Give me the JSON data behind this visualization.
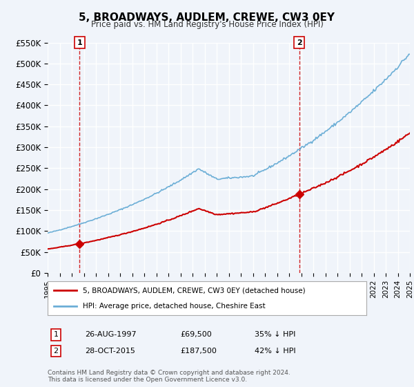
{
  "title": "5, BROADWAYS, AUDLEM, CREWE, CW3 0EY",
  "subtitle": "Price paid vs. HM Land Registry's House Price Index (HPI)",
  "xlim_years": [
    1995,
    2025
  ],
  "ylim": [
    0,
    550000
  ],
  "yticks": [
    0,
    50000,
    100000,
    150000,
    200000,
    250000,
    300000,
    350000,
    400000,
    450000,
    500000,
    550000
  ],
  "ytick_labels": [
    "£0",
    "£50K",
    "£100K",
    "£150K",
    "£200K",
    "£250K",
    "£300K",
    "£350K",
    "£400K",
    "£450K",
    "£500K",
    "£550K"
  ],
  "xticks": [
    1995,
    1996,
    1997,
    1998,
    1999,
    2000,
    2001,
    2002,
    2003,
    2004,
    2005,
    2006,
    2007,
    2008,
    2009,
    2010,
    2011,
    2012,
    2013,
    2014,
    2015,
    2016,
    2017,
    2018,
    2019,
    2020,
    2021,
    2022,
    2023,
    2024,
    2025
  ],
  "hpi_color": "#6baed6",
  "price_color": "#cc0000",
  "transaction1_year": 1997.65,
  "transaction1_price": 69500,
  "transaction1_label": "1",
  "transaction2_year": 2015.83,
  "transaction2_price": 187500,
  "transaction2_label": "2",
  "legend_line1": "5, BROADWAYS, AUDLEM, CREWE, CW3 0EY (detached house)",
  "legend_line2": "HPI: Average price, detached house, Cheshire East",
  "footer": "Contains HM Land Registry data © Crown copyright and database right 2024.\nThis data is licensed under the Open Government Licence v3.0.",
  "background_color": "#f0f4fa",
  "grid_color": "#ffffff",
  "label_row1_1": "1",
  "label_row1_2": "26-AUG-1997",
  "label_row1_3": "£69,500",
  "label_row1_4": "35% ↓ HPI",
  "label_row2_1": "2",
  "label_row2_2": "28-OCT-2015",
  "label_row2_3": "£187,500",
  "label_row2_4": "42% ↓ HPI"
}
